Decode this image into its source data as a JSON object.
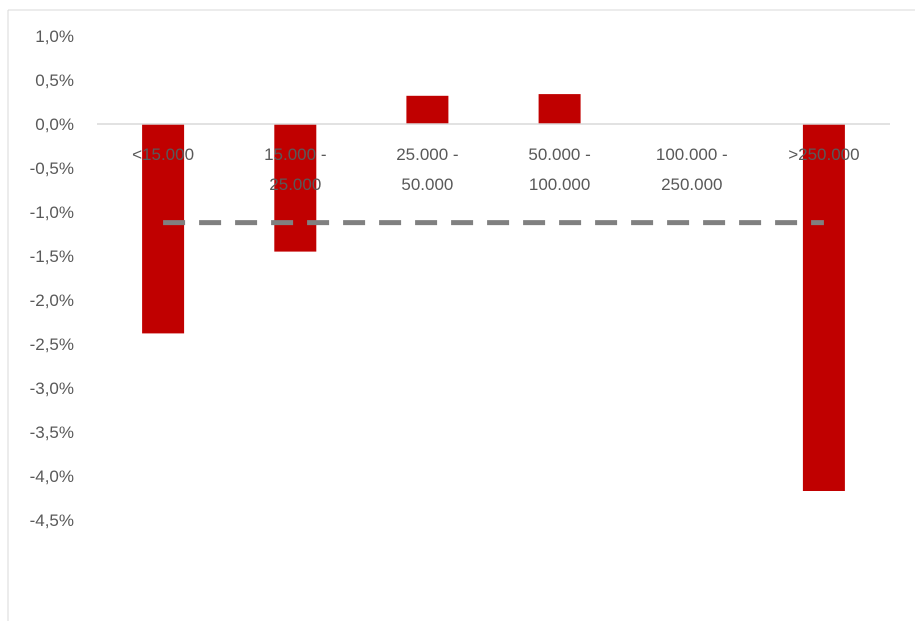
{
  "chart_data": {
    "type": "bar",
    "categories": [
      [
        "<15.000"
      ],
      [
        "15.000 -",
        "25.000"
      ],
      [
        "25.000 -",
        "50.000"
      ],
      [
        "50.000 -",
        "100.000"
      ],
      [
        "100.000 -",
        "250.000"
      ],
      [
        ">250.000"
      ]
    ],
    "values": [
      -2.38,
      -1.45,
      0.32,
      0.34,
      0.0,
      -4.17
    ],
    "reference_line": -1.12,
    "y_ticks": [
      "1,0%",
      "0,5%",
      "0,0%",
      "-0,5%",
      "-1,0%",
      "-1,5%",
      "-2,0%",
      "-2,5%",
      "-3,0%",
      "-3,5%",
      "-4,0%",
      "-4,5%"
    ],
    "y_tick_values": [
      1.0,
      0.5,
      0.0,
      -0.5,
      -1.0,
      -1.5,
      -2.0,
      -2.5,
      -3.0,
      -3.5,
      -4.0,
      -4.5
    ],
    "ylim": [
      -4.5,
      1.0
    ],
    "grid": false,
    "title": "",
    "xlabel": "",
    "ylabel": "",
    "colors": {
      "bar": "#c00000",
      "reference_line": "#808080",
      "axis": "#d9d9d9",
      "text": "#595959"
    }
  }
}
